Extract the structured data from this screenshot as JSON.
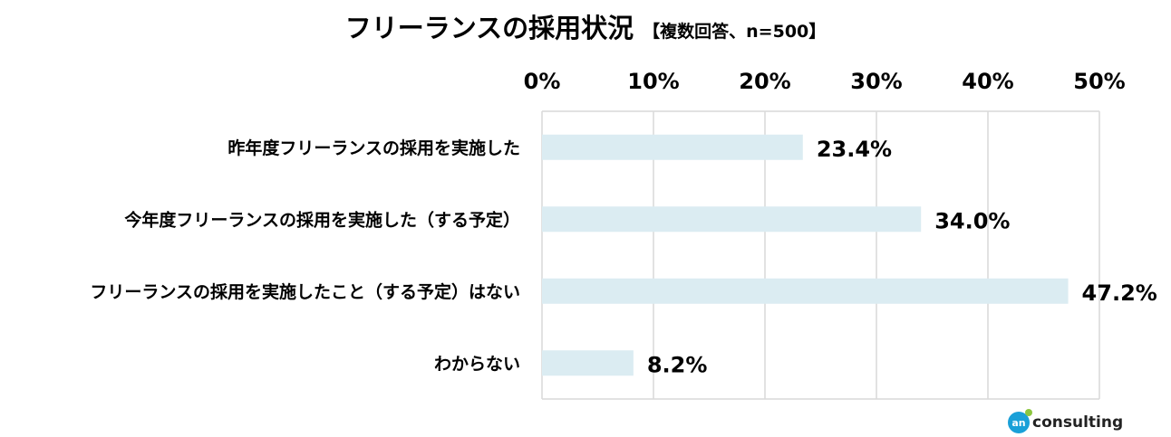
{
  "chart_data": {
    "type": "bar",
    "orientation": "horizontal",
    "title": "フリーランスの採用状況",
    "subtitle": "【複数回答、n=500】",
    "categories": [
      "昨年度フリーランスの採用を実施した",
      "今年度フリーランスの採用を実施した（する予定）",
      "フリーランスの採用を実施したこと（する予定）はない",
      "わからない"
    ],
    "values": [
      23.4,
      34.0,
      47.2,
      8.2
    ],
    "value_labels": [
      "23.4%",
      "34.0%",
      "47.2%",
      "8.2%"
    ],
    "xlim": [
      0,
      50
    ],
    "x_ticks": [
      "0%",
      "10%",
      "20%",
      "30%",
      "40%",
      "50%"
    ],
    "grid": true,
    "bar_color": "#dbecf2",
    "grid_color": "#d9d9d9"
  },
  "brand": {
    "text": "consulting",
    "mark": "an",
    "color": "#1aa0d8",
    "dot_color": "#8cc63f"
  }
}
